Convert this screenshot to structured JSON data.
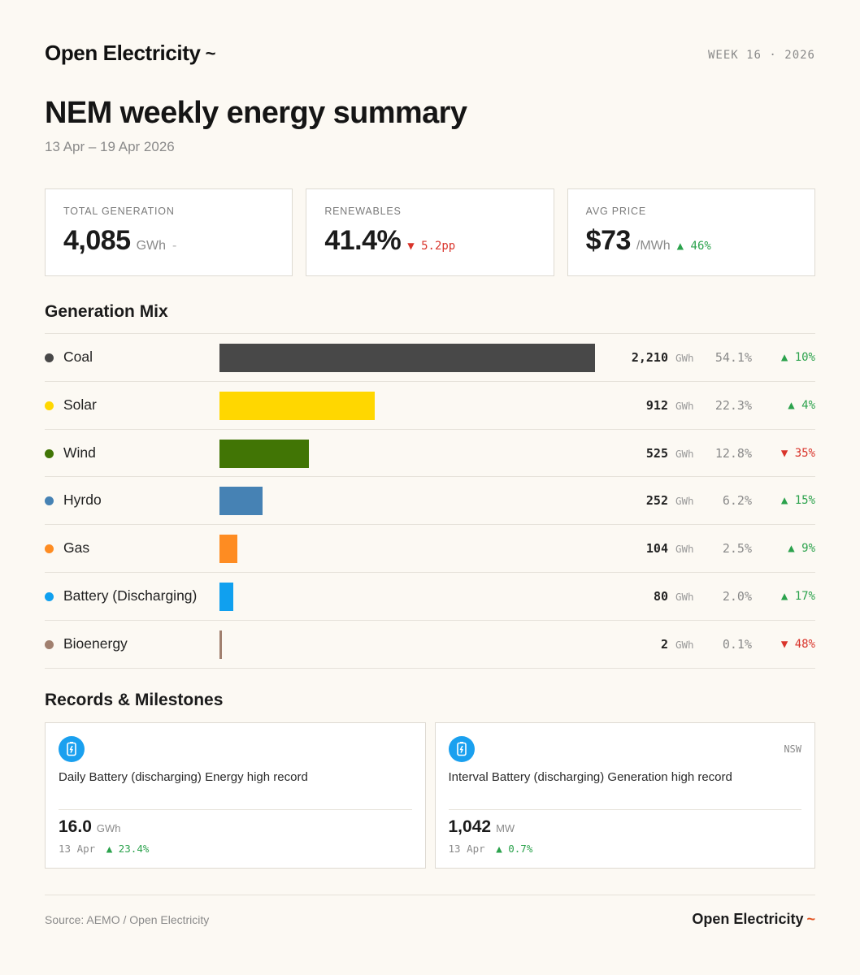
{
  "header": {
    "brand": "Open Electricity",
    "brand_mark": "~",
    "week_label": "WEEK 16 · 2026"
  },
  "title": "NEM weekly energy summary",
  "date_range": "13 Apr – 19 Apr 2026",
  "stats": {
    "total": {
      "label": "TOTAL GENERATION",
      "value": "4,085",
      "unit": "GWh",
      "change": "-"
    },
    "renewables": {
      "label": "RENEWABLES",
      "value": "41.4%",
      "change": "▼ 5.2pp",
      "direction": "down"
    },
    "price": {
      "label": "AVG PRICE",
      "value": "$73",
      "unit": "/MWh",
      "change": "▲ 46%",
      "direction": "up"
    }
  },
  "mix_title": "Generation Mix",
  "mix_unit": "GWh",
  "chart_data": {
    "type": "bar",
    "orientation": "horizontal",
    "categories": [
      "Coal",
      "Solar",
      "Wind",
      "Hyrdo",
      "Gas",
      "Battery (Discharging)",
      "Bioenergy"
    ],
    "values": [
      2210,
      912,
      525,
      252,
      104,
      80,
      2
    ],
    "value_labels": [
      "2,210",
      "912",
      "525",
      "252",
      "104",
      "80",
      "2"
    ],
    "shares": [
      "54.1%",
      "22.3%",
      "12.8%",
      "6.2%",
      "2.5%",
      "2.0%",
      "0.1%"
    ],
    "changes": [
      "▲ 10%",
      "▲ 4%",
      "▼ 35%",
      "▲ 15%",
      "▲ 9%",
      "▲ 17%",
      "▼ 48%"
    ],
    "change_directions": [
      "up",
      "up",
      "down",
      "up",
      "up",
      "up",
      "down"
    ],
    "colors": [
      "#484848",
      "#ffd700",
      "#417505",
      "#4682b4",
      "#fe8c22",
      "#10a0ef",
      "#a1806f"
    ],
    "xlim": [
      0,
      2210
    ]
  },
  "records_title": "Records & Milestones",
  "records": [
    {
      "icon": "battery-icon",
      "region": "",
      "title": "Daily Battery (discharging) Energy high record",
      "value": "16.0",
      "unit": "GWh",
      "date": "13 Apr",
      "change": "▲ 23.4%"
    },
    {
      "icon": "battery-icon",
      "region": "NSW",
      "title": "Interval Battery (discharging) Generation high record",
      "value": "1,042",
      "unit": "MW",
      "date": "13 Apr",
      "change": "▲ 0.7%"
    }
  ],
  "footer": {
    "source": "Source: AEMO / Open Electricity",
    "brand": "Open Electricity",
    "brand_mark": "~"
  }
}
